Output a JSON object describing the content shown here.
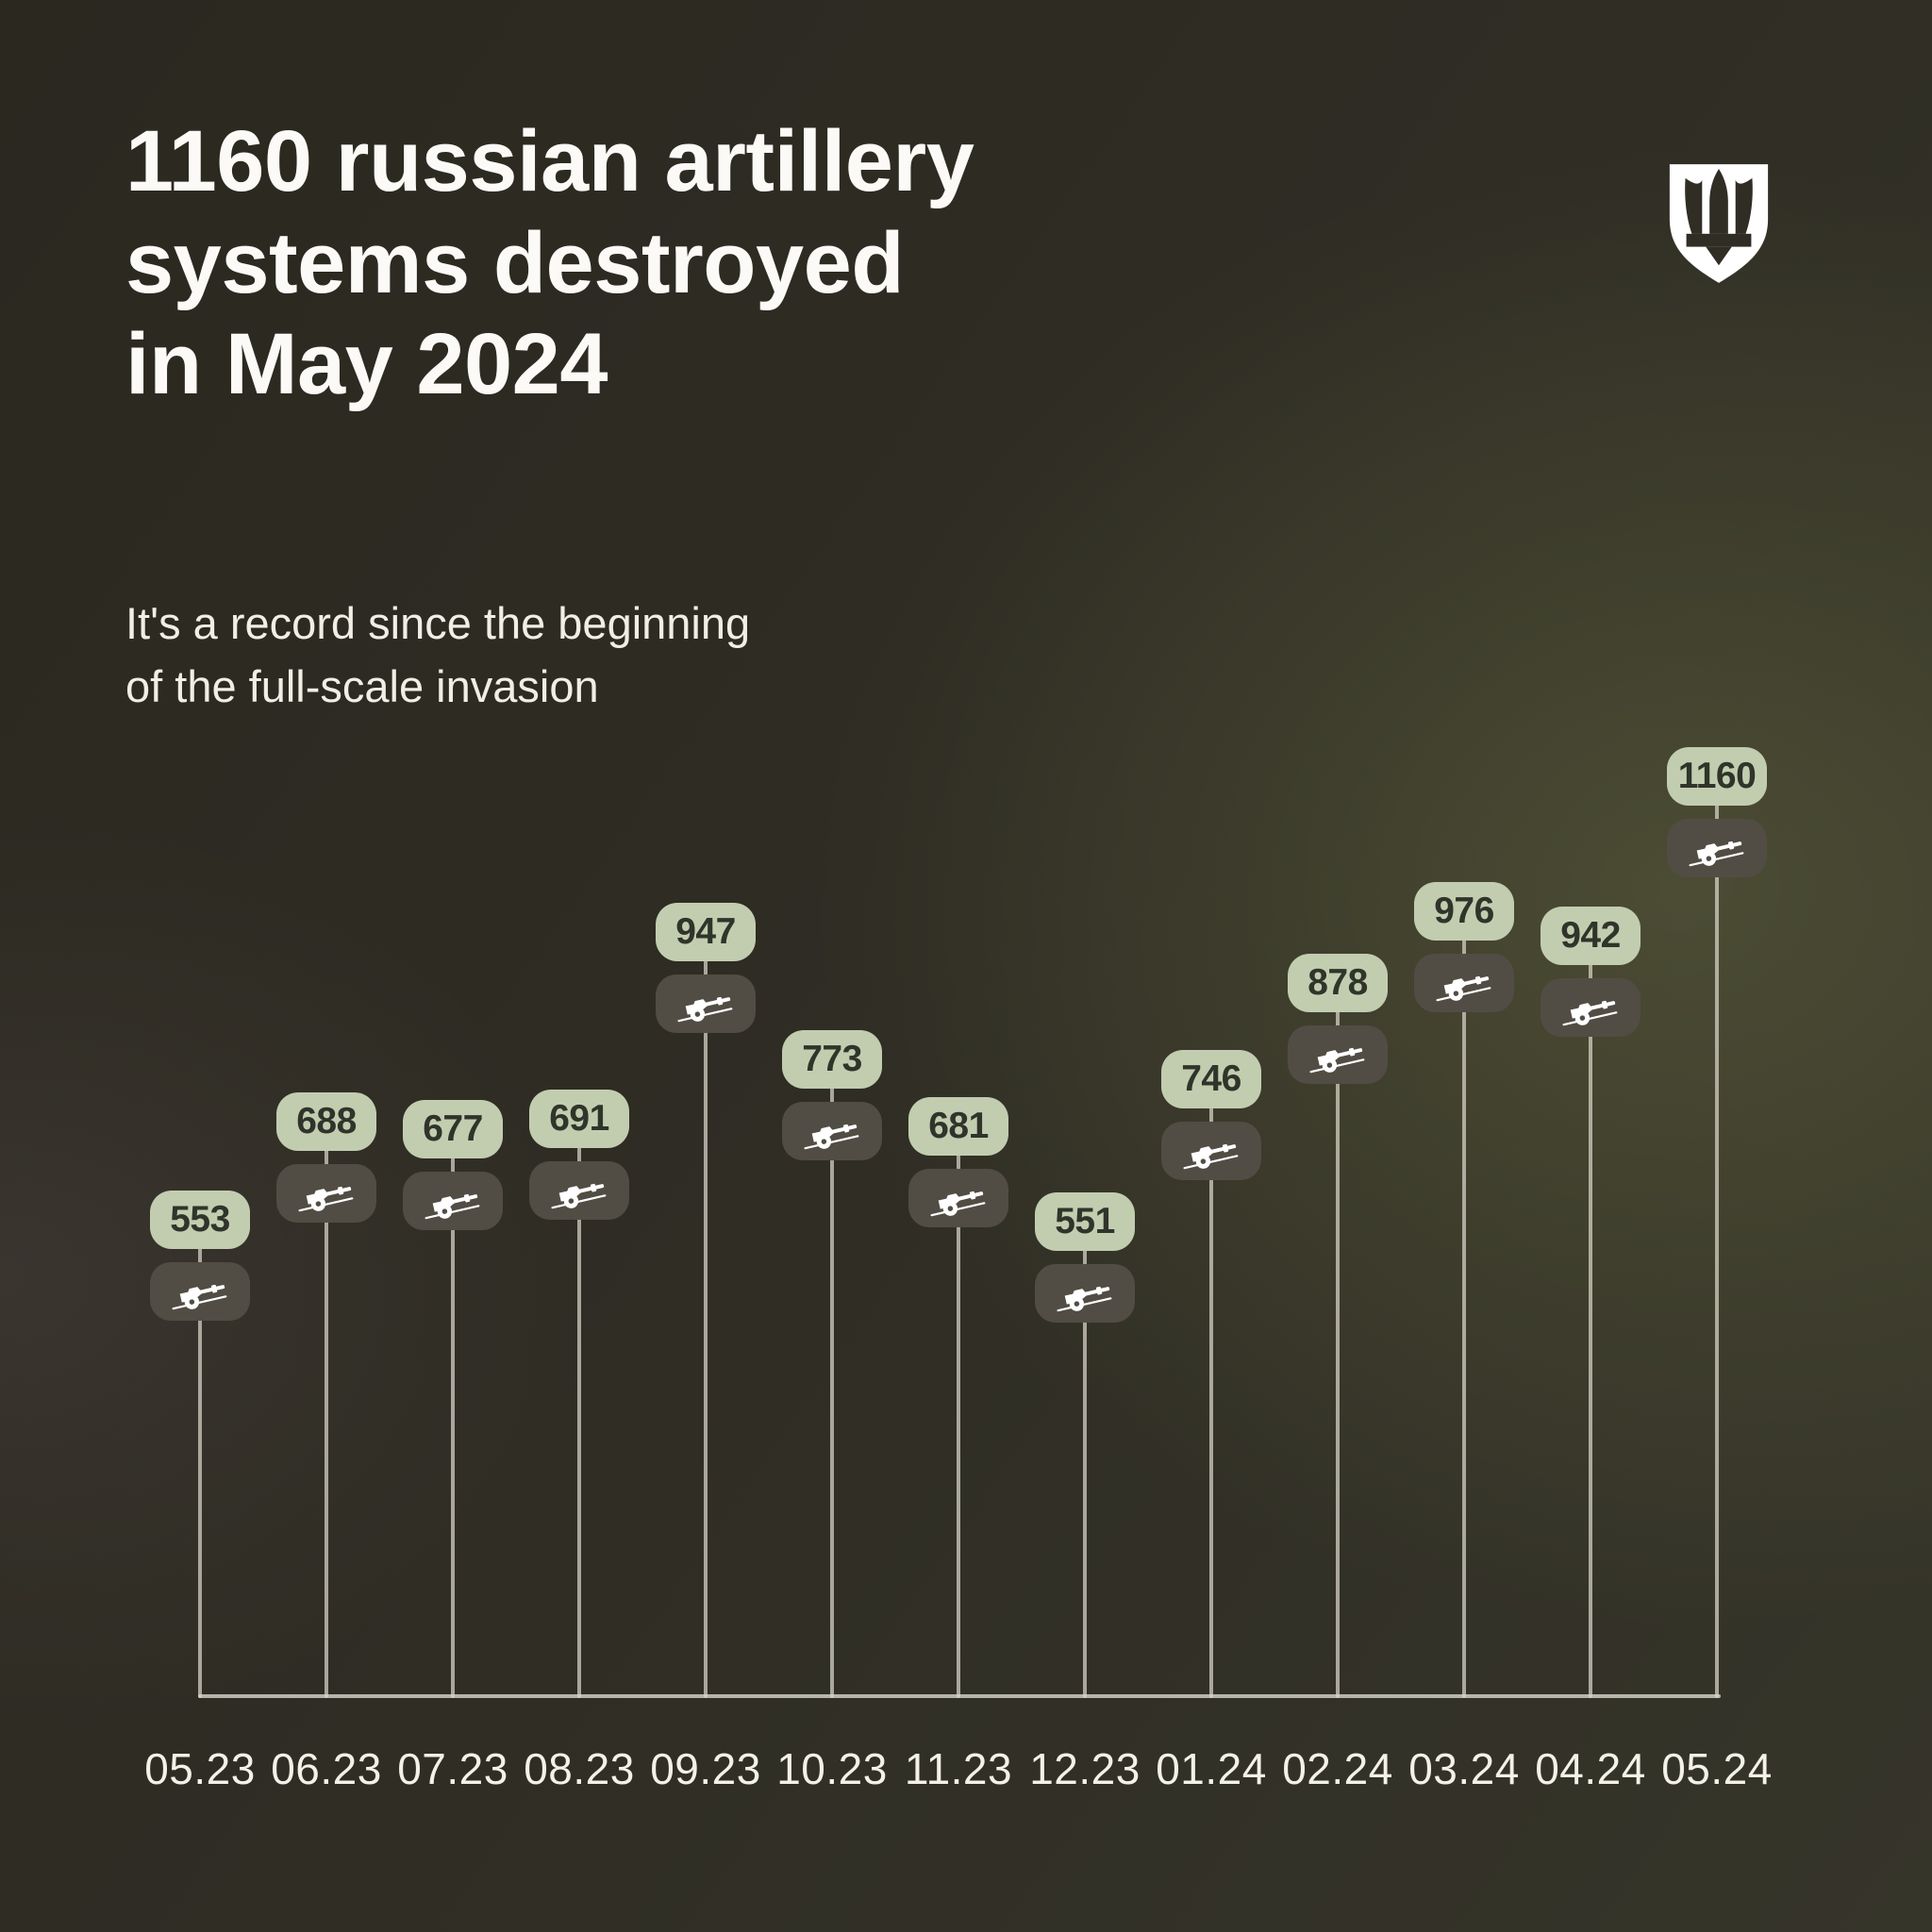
{
  "title": "1160 russian artillery\nsystems destroyed\nin May 2024",
  "subtitle": "It's a record since the beginning\nof the full-scale invasion",
  "logo": {
    "name": "shield-with-trident-emblem"
  },
  "chart_data": {
    "type": "lollipop",
    "title": "1160 russian artillery systems destroyed in May 2024",
    "subtitle": "It's a record since the beginning of the full-scale invasion",
    "unit": "artillery systems destroyed per month",
    "marker_icon": "artillery-cannon-icon",
    "categories": [
      "05.23",
      "06.23",
      "07.23",
      "08.23",
      "09.23",
      "10.23",
      "11.23",
      "12.23",
      "01.24",
      "02.24",
      "03.24",
      "04.24",
      "05.24"
    ],
    "values": [
      553,
      688,
      677,
      691,
      947,
      773,
      681,
      551,
      746,
      878,
      976,
      942,
      1160
    ],
    "value_labels_shown": true,
    "ylim": [
      0,
      1160
    ],
    "grid": false,
    "legend_position": "none"
  },
  "colors": {
    "background": "#2e2c23",
    "title_text": "#fbfaf6",
    "subtitle_text": "#f0eee5",
    "value_badge_bg": "#c2cdb0",
    "value_badge_text": "#30342a",
    "icon_badge_bg": "#514d44",
    "icon_color": "#ffffff",
    "stem": "#d9d6ca",
    "baseline": "#d9d6ca",
    "axis_label": "#f3f1e8",
    "logo": "#ffffff"
  }
}
